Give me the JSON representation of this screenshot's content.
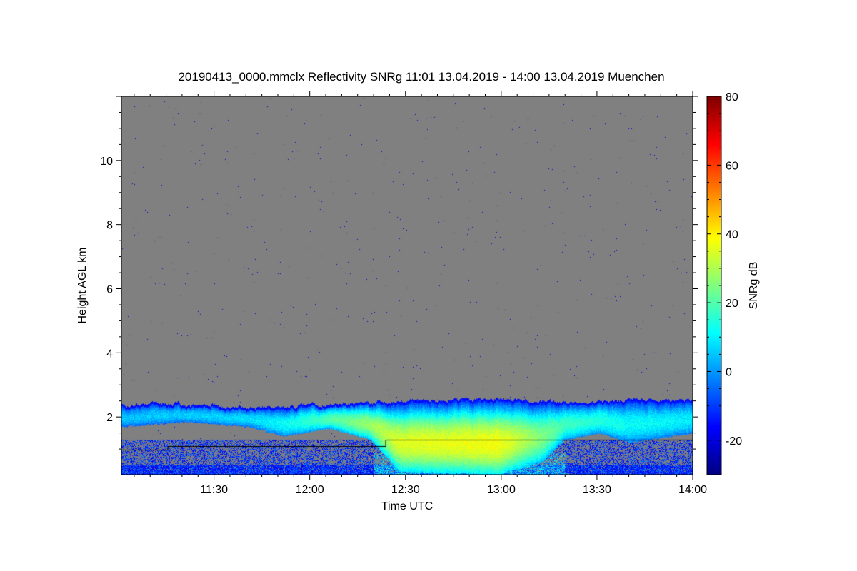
{
  "chart_data": {
    "type": "heatmap",
    "title": "20190413_0000.mmclx Reflectivity SNRg   11:01 13.04.2019 - 14:00 13.04.2019 Muenchen",
    "xlabel": "Time UTC",
    "ylabel": "Height AGL km",
    "colorbar_label": "SNRg dB",
    "x_range": [
      "11:01",
      "14:00"
    ],
    "x_range_minutes": [
      661,
      840
    ],
    "x_ticks": [
      {
        "label": "11:30",
        "min": 690
      },
      {
        "label": "12:00",
        "min": 720
      },
      {
        "label": "12:30",
        "min": 750
      },
      {
        "label": "13:00",
        "min": 780
      },
      {
        "label": "13:30",
        "min": 810
      },
      {
        "label": "14:00",
        "min": 840
      }
    ],
    "y_range": [
      0.2,
      12.0
    ],
    "y_ticks": [
      {
        "label": "2",
        "v": 2
      },
      {
        "label": "4",
        "v": 4
      },
      {
        "label": "6",
        "v": 6
      },
      {
        "label": "8",
        "v": 8
      },
      {
        "label": "10",
        "v": 10
      }
    ],
    "colorbar_range": [
      -30,
      80
    ],
    "colorbar_ticks": [
      {
        "label": "-20",
        "v": -20
      },
      {
        "label": "0",
        "v": 0
      },
      {
        "label": "20",
        "v": 20
      },
      {
        "label": "40",
        "v": 40
      },
      {
        "label": "60",
        "v": 60
      },
      {
        "label": "80",
        "v": 80
      }
    ],
    "colormap": "jet",
    "no_signal_color": "#808080",
    "cloud_layer": {
      "time_min": [
        661,
        681,
        701,
        712,
        726,
        739,
        748,
        779,
        793,
        800,
        811,
        820,
        840
      ],
      "top_km": [
        2.4,
        2.4,
        2.3,
        2.35,
        2.4,
        2.45,
        2.5,
        2.6,
        2.5,
        2.45,
        2.5,
        2.5,
        2.55
      ],
      "base_km": [
        1.7,
        1.85,
        1.7,
        1.4,
        1.65,
        1.3,
        0.3,
        0.2,
        0.6,
        1.3,
        1.5,
        1.2,
        1.5
      ],
      "peak_snr_db": [
        5,
        6,
        8,
        12,
        20,
        28,
        35,
        38,
        25,
        18,
        15,
        12,
        10
      ]
    },
    "ground_clutter_top_km": 1.3
  }
}
